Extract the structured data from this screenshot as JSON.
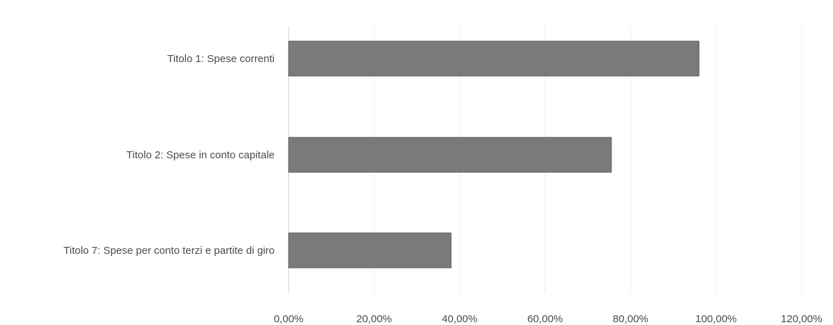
{
  "chart_data": {
    "type": "bar",
    "orientation": "horizontal",
    "title": "",
    "xlabel": "",
    "ylabel": "",
    "categories": [
      "Titolo 1: Spese correnti",
      "Titolo 2: Spese in conto capitale",
      "Titolo 7: Spese per conto terzi e partite di giro"
    ],
    "values": [
      96.0,
      75.5,
      38.0
    ],
    "value_unit": "percent",
    "xlim": [
      0,
      120
    ],
    "x_ticks": [
      0,
      20,
      40,
      60,
      80,
      100,
      120
    ],
    "x_tick_labels": [
      "0,00%",
      "20,00%",
      "40,00%",
      "60,00%",
      "80,00%",
      "100,00%",
      "120,00%"
    ],
    "grid": true,
    "legend": "none",
    "bar_color": "#7a7a7a",
    "bar_edge_color": "#5c5c5c"
  }
}
